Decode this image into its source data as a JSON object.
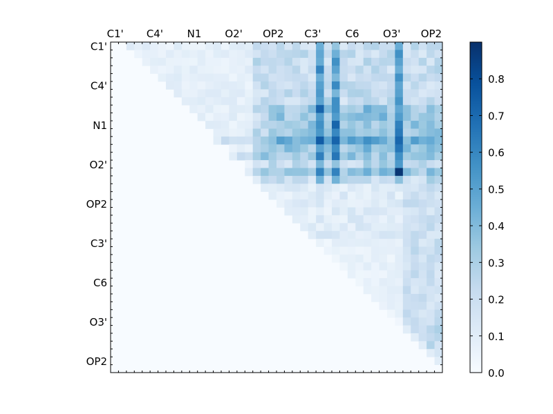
{
  "chart_data": {
    "type": "heatmap",
    "title": "",
    "xlabel": "",
    "ylabel": "",
    "x_tick_labels": [
      "C1'",
      "C4'",
      "N1",
      "O2'",
      "OP2",
      "C3'",
      "C6",
      "O3'",
      "OP2"
    ],
    "y_tick_labels": [
      "C1'",
      "C4'",
      "N1",
      "O2'",
      "OP2",
      "C3'",
      "C6",
      "O3'",
      "OP2"
    ],
    "x_axis_position": "top",
    "grid": false,
    "colormap": {
      "name": "Blues",
      "stops": [
        "#f7fbff",
        "#deebf7",
        "#c6dbef",
        "#9ecae1",
        "#6baed6",
        "#4292c6",
        "#2171b5",
        "#08519c",
        "#08306b"
      ],
      "min": 0.0,
      "max": 0.9
    },
    "colorbar": {
      "position": "right",
      "ticks": [
        "0.0",
        "0.1",
        "0.2",
        "0.3",
        "0.4",
        "0.5",
        "0.6",
        "0.7",
        "0.8"
      ],
      "tick_values": [
        0.0,
        0.1,
        0.2,
        0.3,
        0.4,
        0.5,
        0.6,
        0.7,
        0.8
      ]
    },
    "matrix_size": 42,
    "structure": "upper-triangular contact map; lower triangle is zero",
    "strong_columns": [
      26,
      28,
      36
    ],
    "strong_rows": [
      12,
      14,
      16
    ],
    "peak_value": 0.88
  }
}
